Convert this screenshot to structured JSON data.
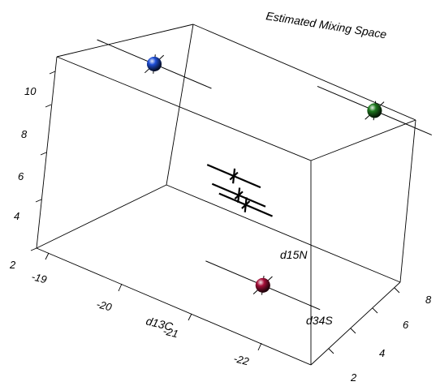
{
  "chart_data": {
    "type": "scatter3d",
    "title": "Estimated Mixing Space",
    "x_axis": {
      "label": "d13C",
      "ticks": [
        "-19",
        "-20",
        "-21",
        "-22"
      ]
    },
    "y_axis": {
      "label": "d34S",
      "ticks": [
        "2",
        "4",
        "6",
        "8"
      ]
    },
    "z_axis": {
      "label": "d15N",
      "ticks": [
        "2",
        "4",
        "6",
        "8",
        "10"
      ]
    },
    "sources": [
      {
        "color": "#1f4fd8",
        "d13C": -19.3,
        "d34S": 6.8,
        "d15N": 8.6
      },
      {
        "color": "#1e7a1e",
        "d13C": -21.9,
        "d34S": 8.6,
        "d15N": 9.5
      },
      {
        "color": "#a8103a",
        "d13C": -21.4,
        "d34S": 3.3,
        "d15N": 3.1
      }
    ],
    "mixtures": [
      {
        "d13C": -20.6,
        "d34S": 5.6,
        "d15N": 5.9
      },
      {
        "d13C": -20.7,
        "d34S": 5.5,
        "d15N": 5.2
      },
      {
        "d13C": -20.8,
        "d34S": 5.5,
        "d15N": 4.9
      }
    ]
  }
}
